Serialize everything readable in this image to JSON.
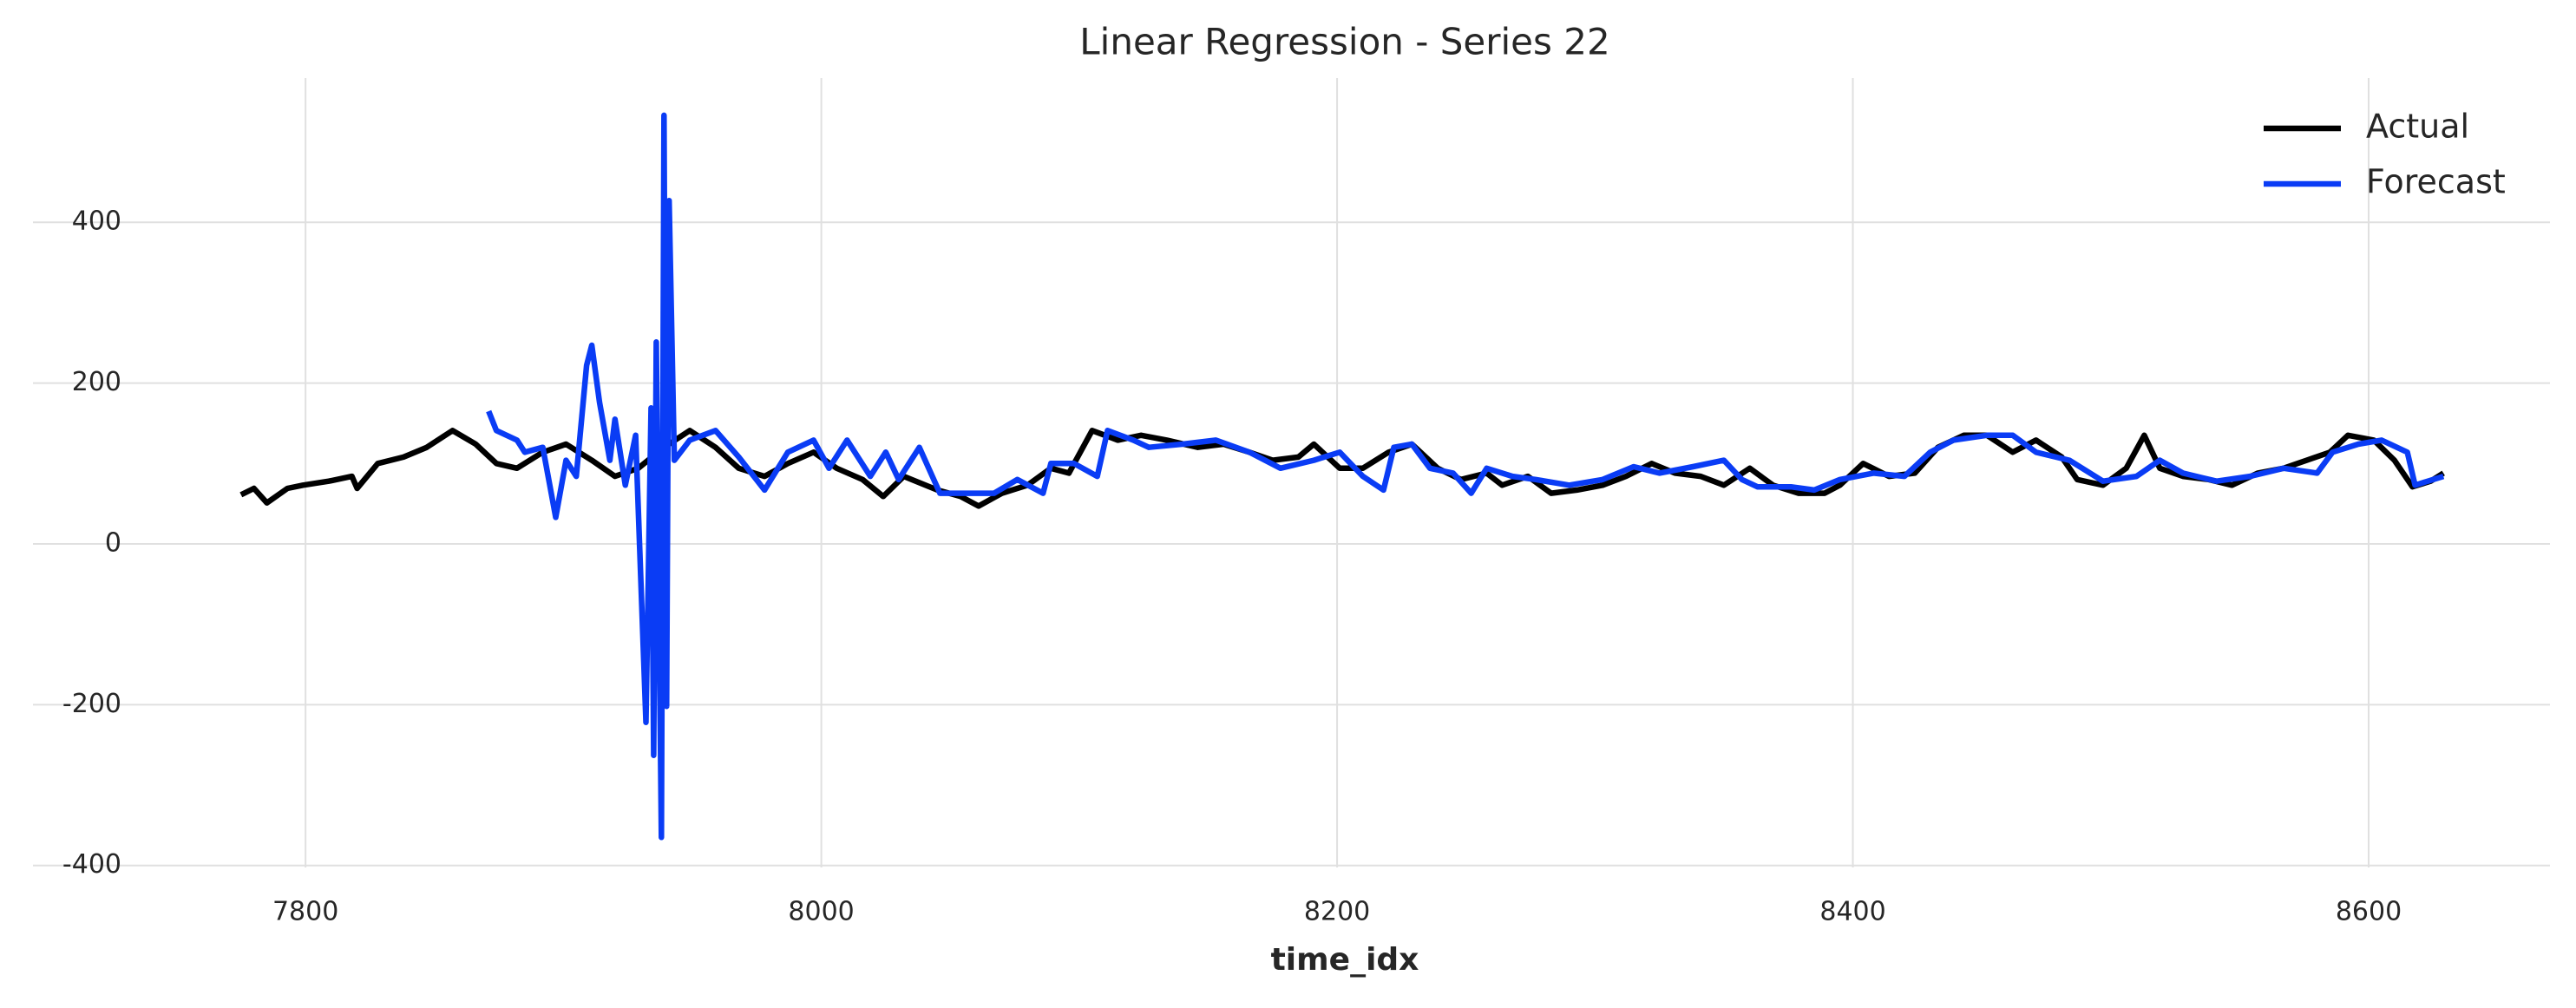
{
  "chart_data": {
    "type": "line",
    "title": "Linear Regression - Series 22",
    "xlabel": "time_idx",
    "xlim": [
      7733,
      8673
    ],
    "ylim": [
      -410,
      575
    ],
    "xticks": [
      7800,
      8000,
      8200,
      8400,
      8600
    ],
    "yticks": [
      -400,
      -200,
      0,
      200,
      400
    ],
    "grid": true,
    "legend": "upper right",
    "series": [
      {
        "name": "Actual",
        "color": "#000000",
        "x": [
          7775,
          7780,
          7785,
          7793,
          7799,
          7809,
          7818,
          7820,
          7828,
          7838,
          7847,
          7857,
          7866,
          7874,
          7882,
          7892,
          7901,
          7911,
          7920,
          7929,
          7939,
          7949,
          7959,
          7968,
          7978,
          7987,
          7997,
          8006,
          8016,
          8024,
          8032,
          8045,
          8054,
          8061,
          8070,
          8080,
          8089,
          8096,
          8105,
          8115,
          8124,
          8134,
          8146,
          8156,
          8166,
          8175,
          8185,
          8191,
          8201,
          8210,
          8220,
          8229,
          8239,
          8248,
          8258,
          8264,
          8274,
          8283,
          8293,
          8303,
          8312,
          8322,
          8331,
          8341,
          8350,
          8360,
          8369,
          8379,
          8389,
          8395,
          8404,
          8414,
          8424,
          8433,
          8443,
          8452,
          8462,
          8471,
          8481,
          8487,
          8497,
          8506,
          8513,
          8519,
          8528,
          8538,
          8547,
          8557,
          8567,
          8576,
          8585,
          8592,
          8602,
          8610,
          8617,
          8624,
          8629
        ],
        "values": [
          61,
          69,
          51,
          69,
          73,
          78,
          84,
          69,
          100,
          108,
          120,
          141,
          124,
          100,
          94,
          114,
          124,
          104,
          84,
          94,
          120,
          141,
          120,
          94,
          84,
          100,
          114,
          94,
          80,
          59,
          84,
          67,
          59,
          47,
          63,
          73,
          94,
          88,
          141,
          129,
          135,
          129,
          120,
          124,
          114,
          104,
          108,
          124,
          94,
          94,
          114,
          124,
          94,
          80,
          88,
          73,
          84,
          63,
          67,
          73,
          84,
          100,
          88,
          84,
          73,
          94,
          73,
          63,
          63,
          73,
          100,
          84,
          88,
          120,
          135,
          135,
          114,
          129,
          108,
          80,
          73,
          94,
          135,
          94,
          84,
          80,
          73,
          88,
          94,
          104,
          114,
          135,
          129,
          104,
          71,
          78,
          88
        ]
      },
      {
        "name": "Forecast",
        "color": "#0a3cf5",
        "x": [
          7871,
          7874,
          7882,
          7885,
          7892,
          7897,
          7901,
          7905,
          7909,
          7911,
          7914,
          7918,
          7920,
          7924,
          7928,
          7932,
          7934,
          7935,
          7936,
          7938,
          7939,
          7940,
          7941,
          7943,
          7949,
          7959,
          7968,
          7978,
          7987,
          7997,
          8003,
          8010,
          8019,
          8025,
          8030,
          8038,
          8046,
          8057,
          8067,
          8076,
          8086,
          8089,
          8098,
          8107,
          8111,
          8121,
          8127,
          8140,
          8153,
          8166,
          8178,
          8191,
          8201,
          8210,
          8218,
          8222,
          8229,
          8236,
          8245,
          8252,
          8258,
          8268,
          8277,
          8290,
          8303,
          8315,
          8325,
          8338,
          8350,
          8357,
          8363,
          8376,
          8385,
          8395,
          8408,
          8420,
          8430,
          8439,
          8452,
          8462,
          8471,
          8484,
          8497,
          8510,
          8519,
          8528,
          8541,
          8554,
          8567,
          8580,
          8586,
          8596,
          8605,
          8615,
          8618,
          8629
        ],
        "values": [
          165,
          141,
          129,
          114,
          120,
          33,
          104,
          84,
          222,
          247,
          176,
          104,
          155,
          73,
          135,
          -222,
          169,
          -263,
          251,
          -365,
          533,
          -202,
          427,
          104,
          129,
          141,
          108,
          67,
          114,
          129,
          94,
          129,
          84,
          114,
          80,
          120,
          63,
          63,
          63,
          80,
          63,
          100,
          100,
          84,
          141,
          129,
          120,
          124,
          129,
          114,
          94,
          104,
          114,
          84,
          67,
          120,
          124,
          94,
          88,
          63,
          94,
          84,
          80,
          73,
          80,
          96,
          88,
          96,
          104,
          80,
          71,
          71,
          67,
          80,
          88,
          84,
          114,
          129,
          135,
          135,
          114,
          104,
          78,
          84,
          104,
          88,
          78,
          84,
          94,
          88,
          114,
          124,
          129,
          114,
          73,
          84
        ]
      }
    ]
  }
}
